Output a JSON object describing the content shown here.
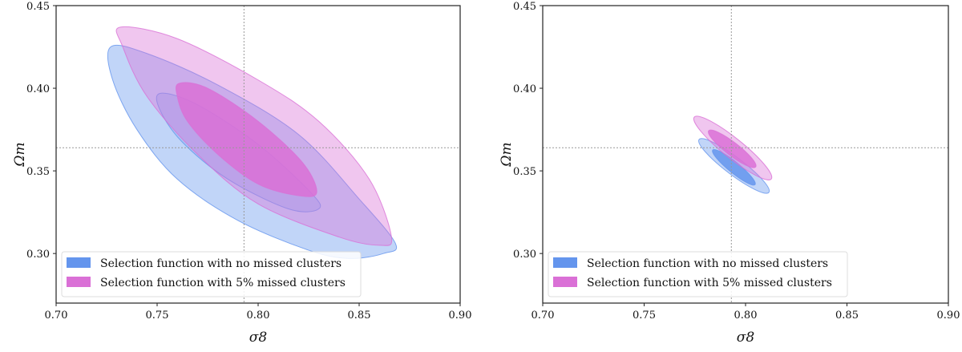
{
  "colors": {
    "blue": "#6495ed",
    "pink": "#da70d6"
  },
  "chart_data": [
    {
      "type": "contour",
      "xlabel": "σ8",
      "ylabel": "Ωm",
      "xlim": [
        0.7,
        0.9
      ],
      "ylim": [
        0.27,
        0.45
      ],
      "xticks": [
        "0.70",
        "0.75",
        "0.80",
        "0.85",
        "0.90"
      ],
      "yticks": [
        "0.30",
        "0.35",
        "0.40",
        "0.45"
      ],
      "reference_lines": {
        "x": 0.793,
        "y": 0.364
      },
      "legend_placement": "lower-left",
      "legend": [
        "Selection function with no missed clusters",
        "Selection function with 5% missed clusters"
      ],
      "series": [
        {
          "name": "Selection function with no missed clusters",
          "color": "blue",
          "contours": [
            {
              "level": "outer",
              "points": [
                [
                  0.727,
                  0.425
                ],
                [
                  0.745,
                  0.421
                ],
                [
                  0.78,
                  0.402
                ],
                [
                  0.82,
                  0.372
                ],
                [
                  0.85,
                  0.333
                ],
                [
                  0.868,
                  0.306
                ],
                [
                  0.862,
                  0.3
                ],
                [
                  0.845,
                  0.297
                ],
                [
                  0.825,
                  0.302
                ],
                [
                  0.79,
                  0.32
                ],
                [
                  0.76,
                  0.345
                ],
                [
                  0.74,
                  0.375
                ],
                [
                  0.728,
                  0.405
                ]
              ]
            },
            {
              "level": "inner",
              "points": [
                [
                  0.752,
                  0.397
                ],
                [
                  0.77,
                  0.39
                ],
                [
                  0.8,
                  0.366
                ],
                [
                  0.826,
                  0.337
                ],
                [
                  0.83,
                  0.327
                ],
                [
                  0.815,
                  0.327
                ],
                [
                  0.785,
                  0.345
                ],
                [
                  0.762,
                  0.368
                ],
                [
                  0.751,
                  0.388
                ]
              ]
            }
          ]
        },
        {
          "name": "Selection function with 5% missed clusters",
          "color": "pink",
          "contours": [
            {
              "level": "outer",
              "points": [
                [
                  0.732,
                  0.437
                ],
                [
                  0.76,
                  0.43
                ],
                [
                  0.8,
                  0.405
                ],
                [
                  0.83,
                  0.38
                ],
                [
                  0.855,
                  0.345
                ],
                [
                  0.866,
                  0.31
                ],
                [
                  0.86,
                  0.305
                ],
                [
                  0.84,
                  0.31
                ],
                [
                  0.8,
                  0.33
                ],
                [
                  0.77,
                  0.36
                ],
                [
                  0.745,
                  0.395
                ],
                [
                  0.733,
                  0.425
                ]
              ]
            },
            {
              "level": "inner",
              "points": [
                [
                  0.761,
                  0.403
                ],
                [
                  0.775,
                  0.4
                ],
                [
                  0.8,
                  0.38
                ],
                [
                  0.822,
                  0.355
                ],
                [
                  0.829,
                  0.337
                ],
                [
                  0.82,
                  0.335
                ],
                [
                  0.8,
                  0.342
                ],
                [
                  0.78,
                  0.36
                ],
                [
                  0.765,
                  0.38
                ],
                [
                  0.76,
                  0.395
                ]
              ]
            }
          ]
        }
      ]
    },
    {
      "type": "contour",
      "xlabel": "σ8",
      "ylabel": "Ωm",
      "xlim": [
        0.7,
        0.9
      ],
      "ylim": [
        0.27,
        0.45
      ],
      "xticks": [
        "0.70",
        "0.75",
        "0.80",
        "0.85",
        "0.90"
      ],
      "yticks": [
        "0.30",
        "0.35",
        "0.40",
        "0.45"
      ],
      "reference_lines": {
        "x": 0.793,
        "y": 0.364
      },
      "legend_placement": "lower-left",
      "legend": [
        "Selection function with no missed clusters",
        "Selection function with 5% missed clusters"
      ],
      "series": [
        {
          "name": "Selection function with no missed clusters",
          "color": "blue",
          "contours": [
            {
              "level": "outer",
              "ellipse": {
                "tip1": [
                  0.7771,
                  0.369
                ],
                "tip2": [
                  0.8115,
                  0.337
                ],
                "width_ratio": 0.2
              }
            },
            {
              "level": "inner",
              "ellipse": {
                "tip1": [
                  0.7838,
                  0.3626
                ],
                "tip2": [
                  0.8047,
                  0.3417
                ],
                "width_ratio": 0.2
              }
            }
          ]
        },
        {
          "name": "Selection function with 5% missed clusters",
          "color": "pink",
          "contours": [
            {
              "level": "outer",
              "ellipse": {
                "tip1": [
                  0.7747,
                  0.3825
                ],
                "tip2": [
                  0.8127,
                  0.3451
                ],
                "width_ratio": 0.2
              }
            },
            {
              "level": "inner",
              "ellipse": {
                "tip1": [
                  0.7818,
                  0.3743
                ],
                "tip2": [
                  0.805,
                  0.3524
                ],
                "width_ratio": 0.22
              }
            }
          ]
        }
      ]
    }
  ]
}
